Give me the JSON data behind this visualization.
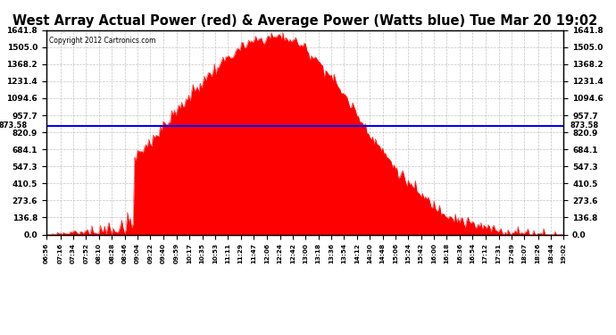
{
  "title": "West Array Actual Power (red) & Average Power (Watts blue) Tue Mar 20 19:02",
  "copyright": "Copyright 2012 Cartronics.com",
  "avg_power": 873.58,
  "ymax": 1641.8,
  "ymin": 0.0,
  "yticks": [
    0.0,
    136.8,
    273.6,
    410.5,
    547.3,
    684.1,
    820.9,
    957.7,
    1094.6,
    1231.4,
    1368.2,
    1505.0,
    1641.8
  ],
  "fill_color": "#FF0000",
  "line_color": "#0000FF",
  "bg_color": "#FFFFFF",
  "grid_color": "#AAAAAA",
  "title_fontsize": 10.5,
  "start_time": "06:56",
  "end_time": "19:02",
  "xtick_labels": [
    "06:56",
    "07:16",
    "07:34",
    "07:52",
    "08:10",
    "08:28",
    "08:46",
    "09:04",
    "09:22",
    "09:40",
    "09:59",
    "10:17",
    "10:35",
    "10:53",
    "11:11",
    "11:29",
    "11:47",
    "12:06",
    "12:24",
    "12:42",
    "13:00",
    "13:18",
    "13:36",
    "13:54",
    "14:12",
    "14:30",
    "14:48",
    "15:06",
    "15:24",
    "15:42",
    "16:00",
    "16:18",
    "16:36",
    "16:54",
    "17:12",
    "17:31",
    "17:49",
    "18:07",
    "18:26",
    "18:44",
    "19:02"
  ]
}
